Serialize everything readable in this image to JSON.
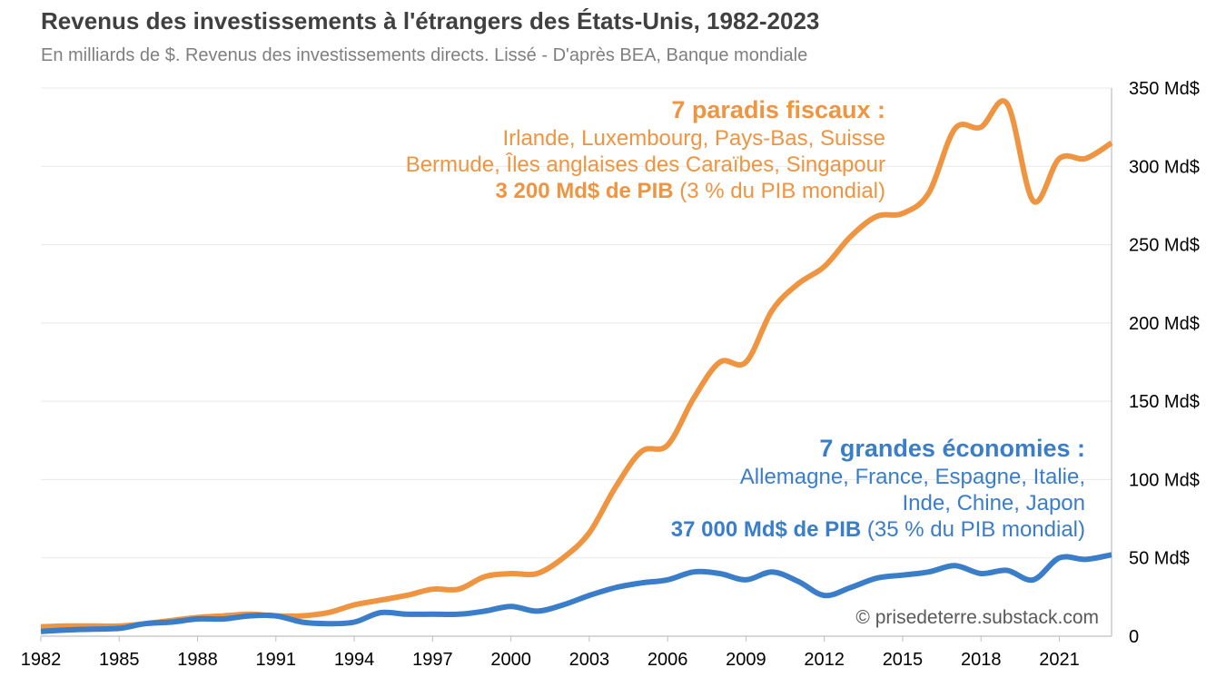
{
  "chart_data": {
    "type": "line",
    "title": "Revenus des investissements à l'étrangers des États-Unis, 1982-2023",
    "subtitle": "En milliards de $. Revenus des investissements directs. Lissé - D'après BEA, Banque mondiale",
    "xlim": [
      1982,
      2023
    ],
    "ylim": [
      0,
      350
    ],
    "x_ticks": [
      "1982",
      "1985",
      "1988",
      "1991",
      "1994",
      "1997",
      "2000",
      "2003",
      "2006",
      "2009",
      "2012",
      "2015",
      "2018",
      "2021"
    ],
    "y_ticks": [
      {
        "value": 0,
        "label": "0"
      },
      {
        "value": 50,
        "label": "50 Md$"
      },
      {
        "value": 100,
        "label": "100 Md$"
      },
      {
        "value": 150,
        "label": "150 Md$"
      },
      {
        "value": 200,
        "label": "200 Md$"
      },
      {
        "value": 250,
        "label": "250 Md$"
      },
      {
        "value": 300,
        "label": "300 Md$"
      },
      {
        "value": 350,
        "label": "350 Md$"
      }
    ],
    "grid": true,
    "x": [
      1982,
      1983,
      1984,
      1985,
      1986,
      1987,
      1988,
      1989,
      1990,
      1991,
      1992,
      1993,
      1994,
      1995,
      1996,
      1997,
      1998,
      1999,
      2000,
      2001,
      2002,
      2003,
      2004,
      2005,
      2006,
      2007,
      2008,
      2009,
      2010,
      2011,
      2012,
      2013,
      2014,
      2015,
      2016,
      2017,
      2018,
      2019,
      2020,
      2021,
      2022,
      2023
    ],
    "series": [
      {
        "key": "paradis",
        "color": "#ef9440",
        "values": [
          6,
          6.5,
          6.5,
          6.5,
          8,
          10,
          12,
          13,
          14,
          13,
          13,
          15,
          20,
          23,
          26,
          30,
          30,
          38,
          40,
          40,
          50,
          66,
          95,
          118,
          122,
          152,
          175,
          175,
          208,
          225,
          236,
          255,
          268,
          270,
          283,
          324,
          325,
          340,
          278,
          305,
          305,
          315
        ]
      },
      {
        "key": "grandes",
        "color": "#3a7dc9",
        "values": [
          3,
          4,
          4.5,
          5,
          8,
          9,
          11,
          11,
          13,
          13,
          9,
          8,
          9,
          15,
          14,
          14,
          14,
          16,
          19,
          16,
          20,
          26,
          31,
          34,
          36,
          41,
          40,
          36,
          41,
          35,
          26,
          31,
          37,
          39,
          41,
          45,
          40,
          42,
          36,
          50,
          49,
          52
        ]
      }
    ],
    "annotations": {
      "paradis": {
        "heading": "7 paradis fiscaux :",
        "line1": "Irlande, Luxembourg, Pays-Bas, Suisse",
        "line2": "Bermude, Îles anglaises des Caraïbes, Singapour",
        "gdp_bold": "3 200 Md$ de PIB",
        "gdp_rest": " (3 % du PIB mondial)"
      },
      "grandes": {
        "heading": "7 grandes économies :",
        "line1": "Allemagne, France, Espagne, Italie,",
        "line2": "Inde, Chine, Japon",
        "gdp_bold": "37 000 Md$ de PIB",
        "gdp_rest": " (35 % du PIB mondial)"
      }
    },
    "credit": "© prisedeterre.substack.com"
  }
}
